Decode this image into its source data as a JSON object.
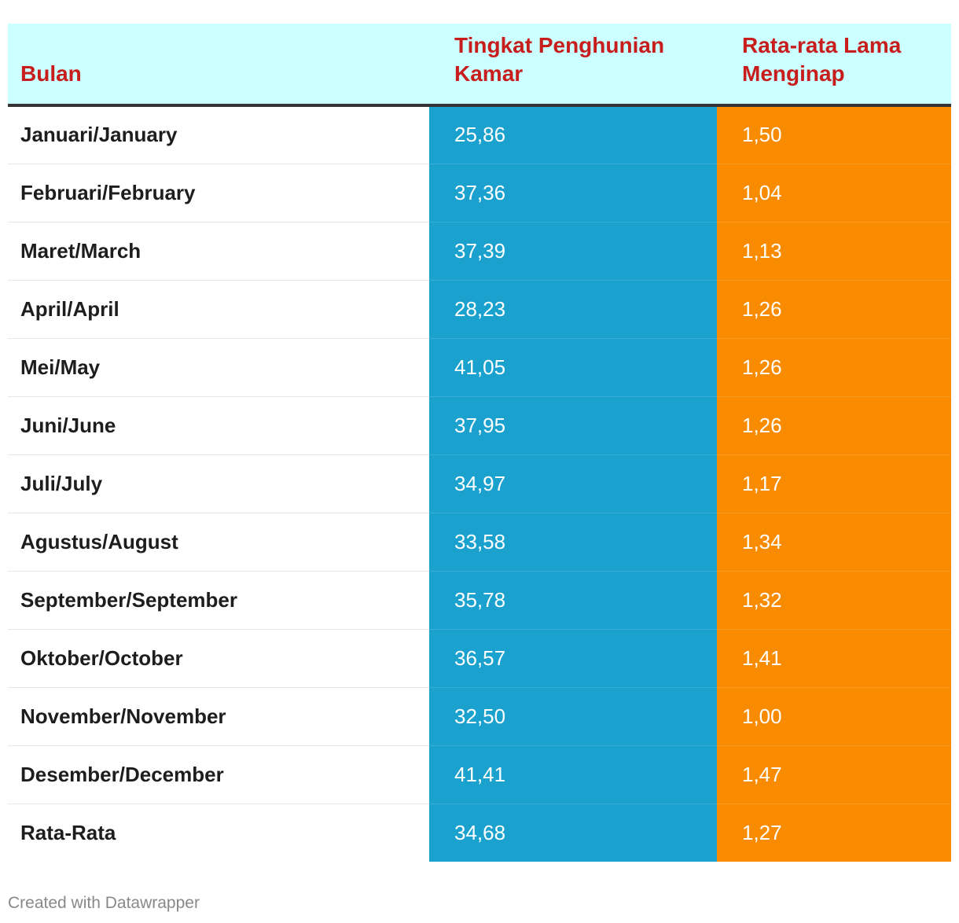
{
  "chart_data": {
    "type": "table",
    "columns": [
      "Bulan",
      "Tingkat Penghunian Kamar",
      "Rata-rata Lama Menginap"
    ],
    "column_colors": [
      "#ffffff",
      "#1aa1ce",
      "#f98b00"
    ],
    "rows": [
      {
        "month": "Januari/January",
        "occupancy": "25,86",
        "avg_stay": "1,50"
      },
      {
        "month": "Februari/February",
        "occupancy": "37,36",
        "avg_stay": "1,04"
      },
      {
        "month": "Maret/March",
        "occupancy": "37,39",
        "avg_stay": "1,13"
      },
      {
        "month": "April/April",
        "occupancy": "28,23",
        "avg_stay": "1,26"
      },
      {
        "month": "Mei/May",
        "occupancy": "41,05",
        "avg_stay": "1,26"
      },
      {
        "month": "Juni/June",
        "occupancy": "37,95",
        "avg_stay": "1,26"
      },
      {
        "month": "Juli/July",
        "occupancy": "34,97",
        "avg_stay": "1,17"
      },
      {
        "month": "Agustus/August",
        "occupancy": "33,58",
        "avg_stay": "1,34"
      },
      {
        "month": "September/September",
        "occupancy": "35,78",
        "avg_stay": "1,32"
      },
      {
        "month": "Oktober/October",
        "occupancy": "36,57",
        "avg_stay": "1,41"
      },
      {
        "month": "November/November",
        "occupancy": "32,50",
        "avg_stay": "1,00"
      },
      {
        "month": "Desember/December",
        "occupancy": "41,41",
        "avg_stay": "1,47"
      },
      {
        "month": "Rata-Rata",
        "occupancy": "34,68",
        "avg_stay": "1,27"
      }
    ]
  },
  "header_color": "#ccffff",
  "header_text_color": "#c71e1d",
  "footer": {
    "credit": "Created with Datawrapper"
  }
}
